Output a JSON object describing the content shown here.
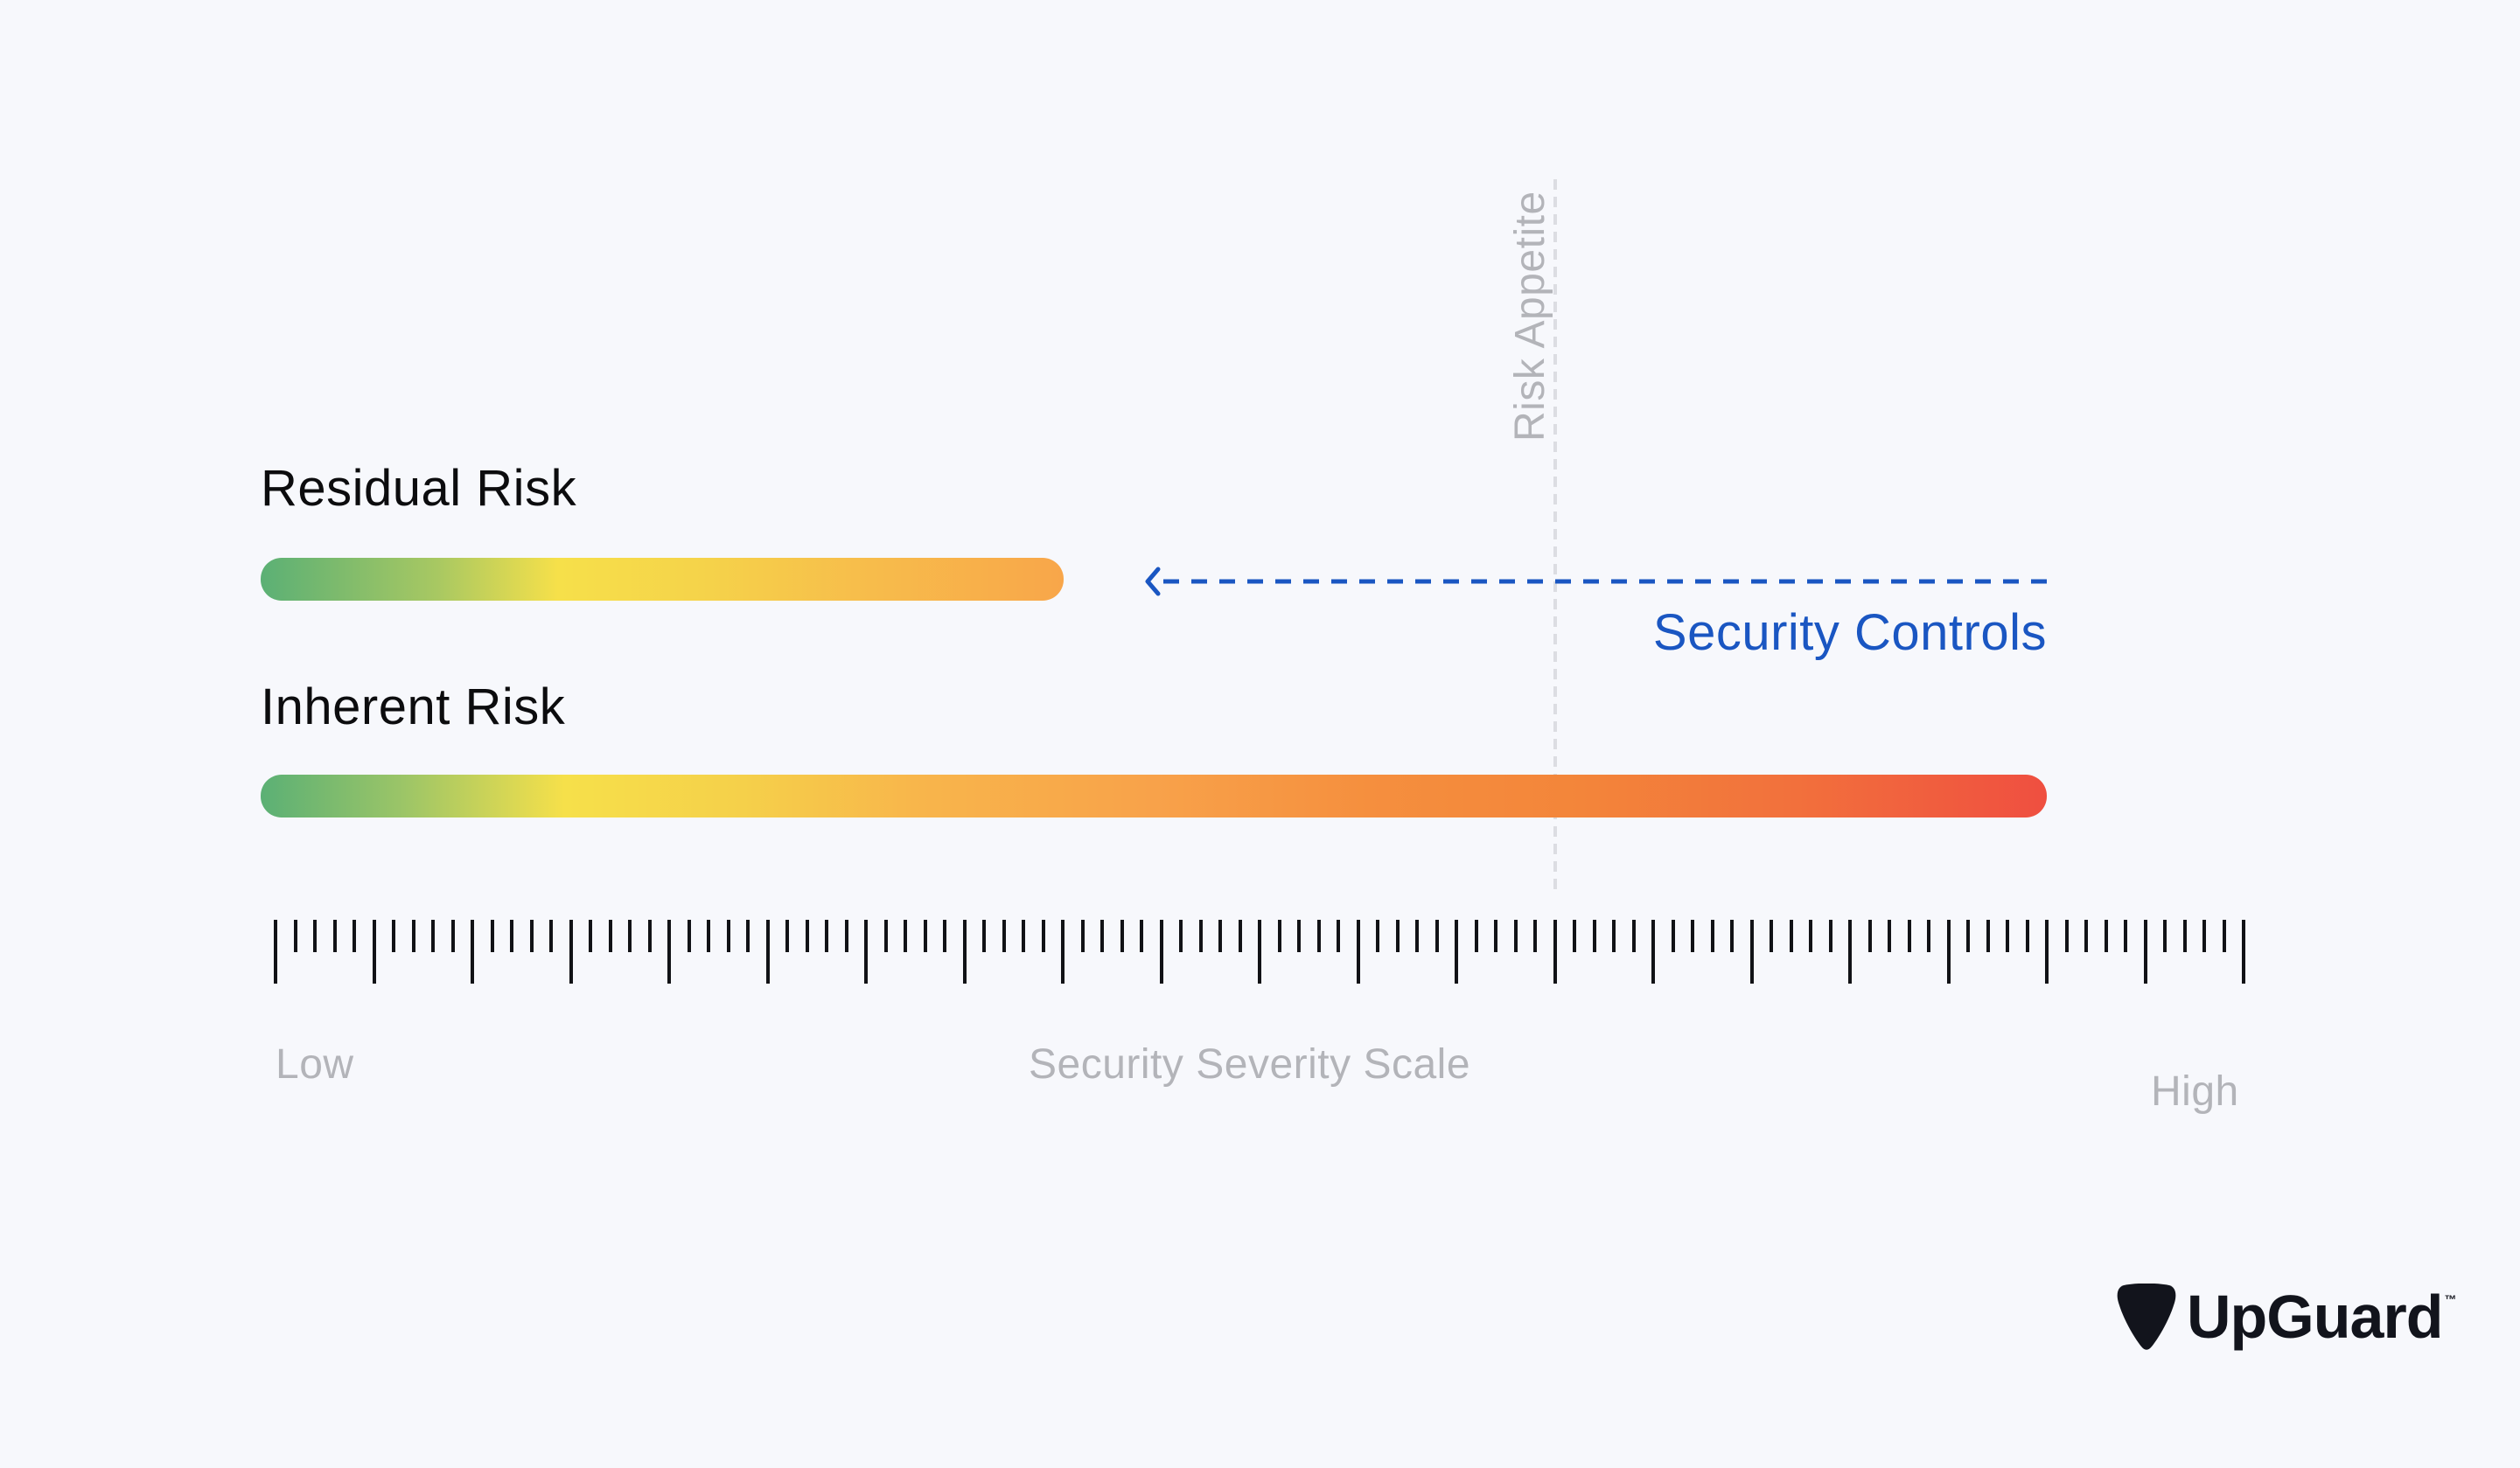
{
  "diagram": {
    "residual_label": "Residual Risk",
    "inherent_label": "Inherent Risk",
    "risk_appetite_label": "Risk Appetite",
    "security_controls_label": "Security Controls",
    "scale": {
      "low_label": "Low",
      "title": "Security Severity Scale",
      "high_label": "High",
      "major_ticks": 21,
      "minor_ticks_per_major": 4
    },
    "colors": {
      "background": "#f7f8fc",
      "gradient": [
        "#5bb075",
        "#f6e04a",
        "#f8a64a",
        "#f48a3a",
        "#ef4f40"
      ],
      "controls_blue": "#1a56c2",
      "muted_gray": "#b3b4b9"
    }
  },
  "brand": {
    "name": "UpGuard",
    "trademark": "™",
    "icon": "guitar-pick-shield-icon"
  }
}
